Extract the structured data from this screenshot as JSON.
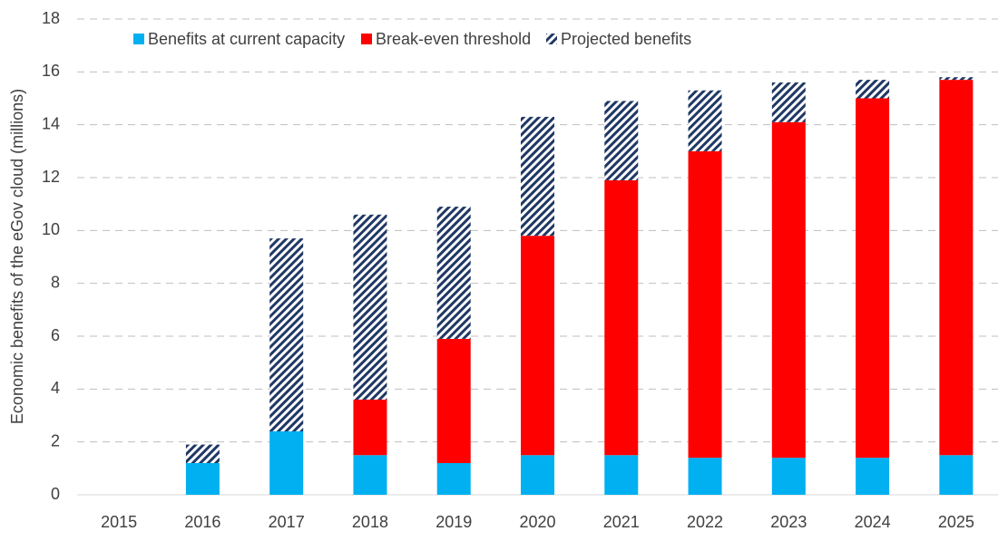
{
  "chart_data": {
    "type": "stacked_bar",
    "ylabel": "Economic benefits  of the eGov cloud (millions)",
    "categories": [
      "2015",
      "2016",
      "2017",
      "2018",
      "2019",
      "2020",
      "2021",
      "2022",
      "2023",
      "2024",
      "2025"
    ],
    "series": [
      {
        "name": "Benefits at current capacity",
        "color": "#00b0f0",
        "values": [
          0,
          1.2,
          2.4,
          1.5,
          1.2,
          1.5,
          1.5,
          1.4,
          1.4,
          1.4,
          1.5
        ]
      },
      {
        "name": "Break-even threshold",
        "color": "#ff0000",
        "values": [
          0,
          0,
          0,
          2.1,
          4.7,
          8.3,
          10.4,
          11.6,
          12.7,
          13.6,
          14.2
        ]
      },
      {
        "name": "Projected benefits",
        "color": "#1f3864",
        "hatch": true,
        "values": [
          0,
          0.7,
          7.3,
          7.0,
          5.0,
          4.5,
          3.0,
          2.3,
          1.5,
          0.7,
          0.1
        ]
      }
    ],
    "ylim": [
      0,
      18
    ],
    "yticks": [
      0,
      2,
      4,
      6,
      8,
      10,
      12,
      14,
      16,
      18
    ],
    "grid": true,
    "legend": "top"
  }
}
